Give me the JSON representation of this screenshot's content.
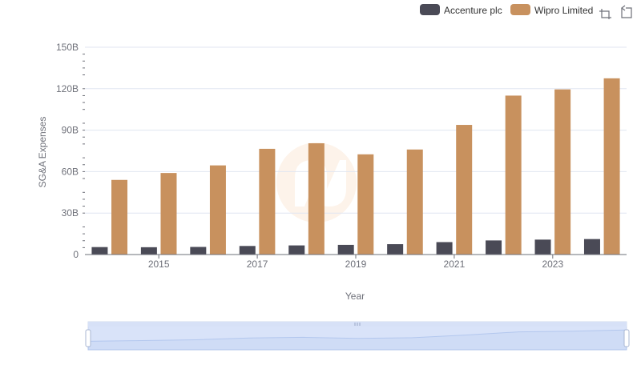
{
  "toolbar": {
    "zoom_icon": "zoom-rect-icon",
    "restore_icon": "restore-icon"
  },
  "chart_data": {
    "type": "bar",
    "xlabel": "Year",
    "ylabel": "SG&A Expenses",
    "ylim": [
      0,
      150
    ],
    "yticks": [
      "0",
      "30B",
      "60B",
      "90B",
      "120B",
      "150B"
    ],
    "categories": [
      "2014",
      "2015",
      "2016",
      "2017",
      "2018",
      "2019",
      "2020",
      "2021",
      "2022",
      "2023",
      "2024"
    ],
    "xtick_labels": [
      "2015",
      "2017",
      "2019",
      "2021",
      "2023"
    ],
    "legend_position": "top-right",
    "grid": true,
    "series": [
      {
        "name": "Accenture plc",
        "color": "#4a4a56",
        "values": [
          5.4,
          5.3,
          5.5,
          6.2,
          6.6,
          7.0,
          7.5,
          9.0,
          10.2,
          10.8,
          11.2
        ]
      },
      {
        "name": "Wipro Limited",
        "color": "#c8915e",
        "values": [
          54.0,
          59.0,
          64.5,
          76.5,
          80.5,
          72.5,
          76.0,
          93.8,
          115.0,
          119.5,
          127.5
        ]
      }
    ]
  }
}
